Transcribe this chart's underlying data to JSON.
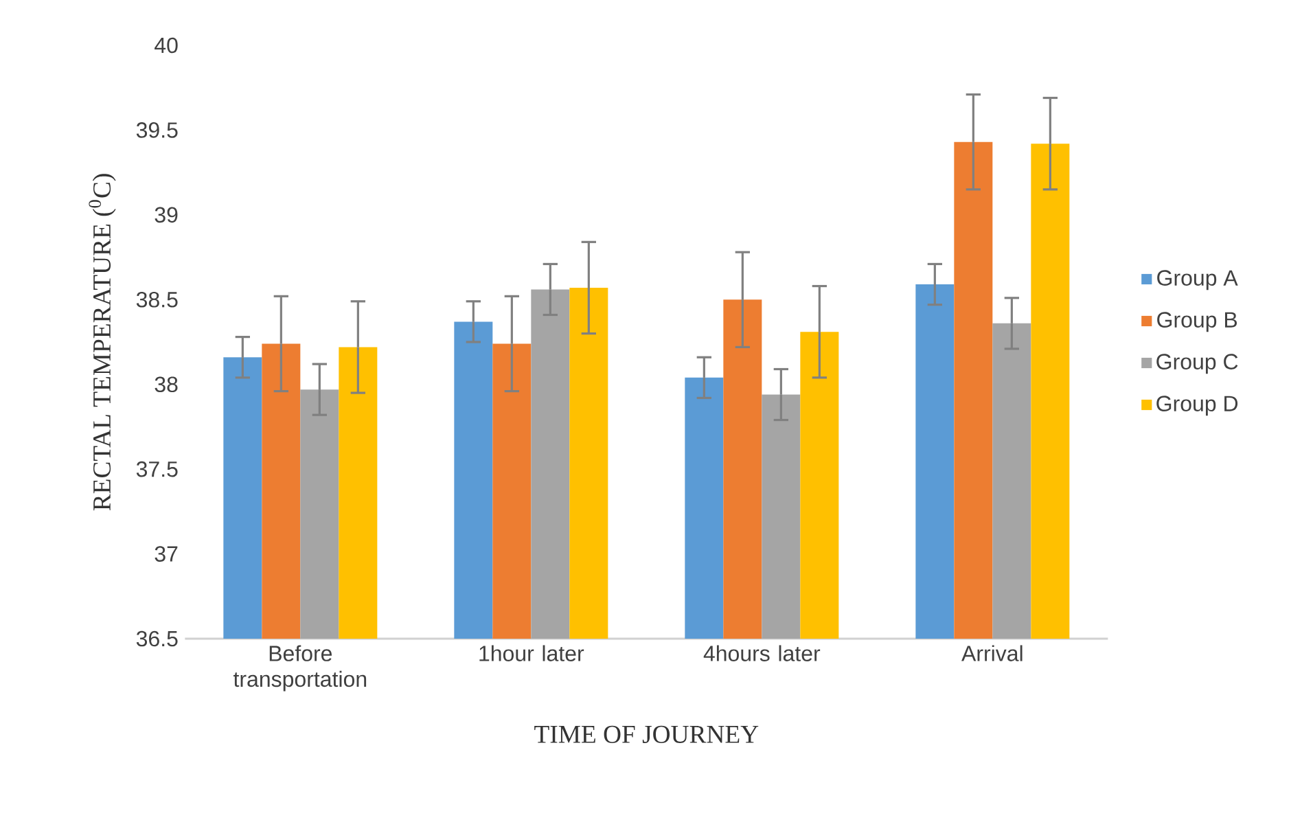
{
  "chart_data": {
    "type": "bar",
    "xlabel": "TIME OF JOURNEY",
    "ylabel": "RECTAL TEMPERATURE ($^{0}$C)",
    "categories": [
      "Before transportation",
      "1hour later",
      "4hours later",
      "Arrival"
    ],
    "series": [
      {
        "name": "Group A",
        "color": "#5b9bd5",
        "values": [
          38.16,
          38.37,
          38.04,
          38.59
        ],
        "errors": [
          0.12,
          0.12,
          0.12,
          0.12
        ]
      },
      {
        "name": "Group B",
        "color": "#ed7d31",
        "values": [
          38.24,
          38.24,
          38.5,
          39.43
        ],
        "errors": [
          0.28,
          0.28,
          0.28,
          0.28
        ]
      },
      {
        "name": "Group C",
        "color": "#a5a5a5",
        "values": [
          37.97,
          38.56,
          37.94,
          38.36
        ],
        "errors": [
          0.15,
          0.15,
          0.15,
          0.15
        ]
      },
      {
        "name": "Group D",
        "color": "#ffc000",
        "values": [
          38.22,
          38.57,
          38.31,
          39.42
        ],
        "errors": [
          0.27,
          0.27,
          0.27,
          0.27
        ]
      }
    ],
    "ylim": [
      36.5,
      40
    ],
    "yticks": [
      36.5,
      37,
      37.5,
      38,
      38.5,
      39,
      39.5,
      40
    ],
    "legend": "right"
  }
}
